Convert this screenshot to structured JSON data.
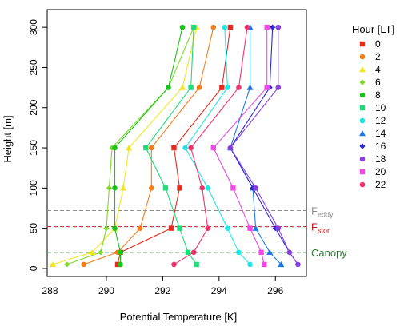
{
  "chart_data": {
    "type": "line",
    "xlabel": "Potential Temperature [K]",
    "ylabel": "Height [m]",
    "xlim": [
      287.9,
      297.1
    ],
    "ylim": [
      -10,
      322
    ],
    "xticks": [
      288,
      290,
      292,
      294,
      296
    ],
    "yticks": [
      0,
      50,
      100,
      150,
      200,
      250,
      300
    ],
    "heights": [
      5,
      20,
      50,
      100,
      150,
      225,
      300
    ],
    "legend": {
      "title": "Hour [LT]",
      "position": "right"
    },
    "series": [
      {
        "name": "0",
        "color": "#e8291e",
        "marker": "square",
        "values": [
          290.4,
          290.5,
          292.3,
          292.6,
          292.4,
          294.1,
          294.4
        ]
      },
      {
        "name": "2",
        "color": "#f27e1b",
        "marker": "circle",
        "values": [
          289.2,
          290.4,
          291.2,
          291.6,
          291.6,
          293.3,
          293.8
        ]
      },
      {
        "name": "4",
        "color": "#f0e620",
        "marker": "triangle",
        "values": [
          288.1,
          289.5,
          290.3,
          290.6,
          290.8,
          292.7,
          293.2
        ]
      },
      {
        "name": "6",
        "color": "#7fd92a",
        "marker": "diamond",
        "values": [
          288.6,
          289.8,
          290.0,
          290.1,
          290.2,
          292.2,
          293.1
        ]
      },
      {
        "name": "8",
        "color": "#17c417",
        "marker": "circle",
        "values": [
          290.5,
          290.5,
          290.3,
          290.3,
          290.3,
          292.2,
          292.7
        ]
      },
      {
        "name": "10",
        "color": "#1ddd7a",
        "marker": "square",
        "values": [
          293.2,
          292.9,
          292.6,
          292.1,
          291.4,
          293.0,
          293.1
        ]
      },
      {
        "name": "12",
        "color": "#22e6e6",
        "marker": "circle",
        "values": [
          295.1,
          294.7,
          294.3,
          293.6,
          292.8,
          294.3,
          294.2
        ]
      },
      {
        "name": "14",
        "color": "#1f78ee",
        "marker": "triangle",
        "values": [
          296.2,
          295.8,
          295.3,
          295.2,
          294.4,
          295.1,
          295.1
        ]
      },
      {
        "name": "16",
        "color": "#2b2bd6",
        "marker": "diamond",
        "values": [
          296.8,
          296.5,
          296.0,
          295.2,
          294.4,
          295.8,
          295.9
        ]
      },
      {
        "name": "18",
        "color": "#8a3fe0",
        "marker": "circle",
        "values": [
          296.8,
          296.5,
          296.1,
          295.3,
          294.4,
          296.1,
          296.1
        ]
      },
      {
        "name": "20",
        "color": "#f047e6",
        "marker": "square",
        "values": [
          295.6,
          295.5,
          295.1,
          294.5,
          293.8,
          295.7,
          295.7
        ]
      },
      {
        "name": "22",
        "color": "#f0336c",
        "marker": "circle",
        "values": [
          292.4,
          293.1,
          293.6,
          293.4,
          293.0,
          294.7,
          295.0
        ]
      }
    ],
    "reference_lines": [
      {
        "label": "Canopy",
        "sub": "",
        "y": 20,
        "color": "#2e7d32"
      },
      {
        "label": "F",
        "sub": "stor",
        "y": 52,
        "color": "#b71c1c"
      },
      {
        "label": "F",
        "sub": "eddy",
        "y": 72,
        "color": "#8c8c8c"
      }
    ]
  }
}
